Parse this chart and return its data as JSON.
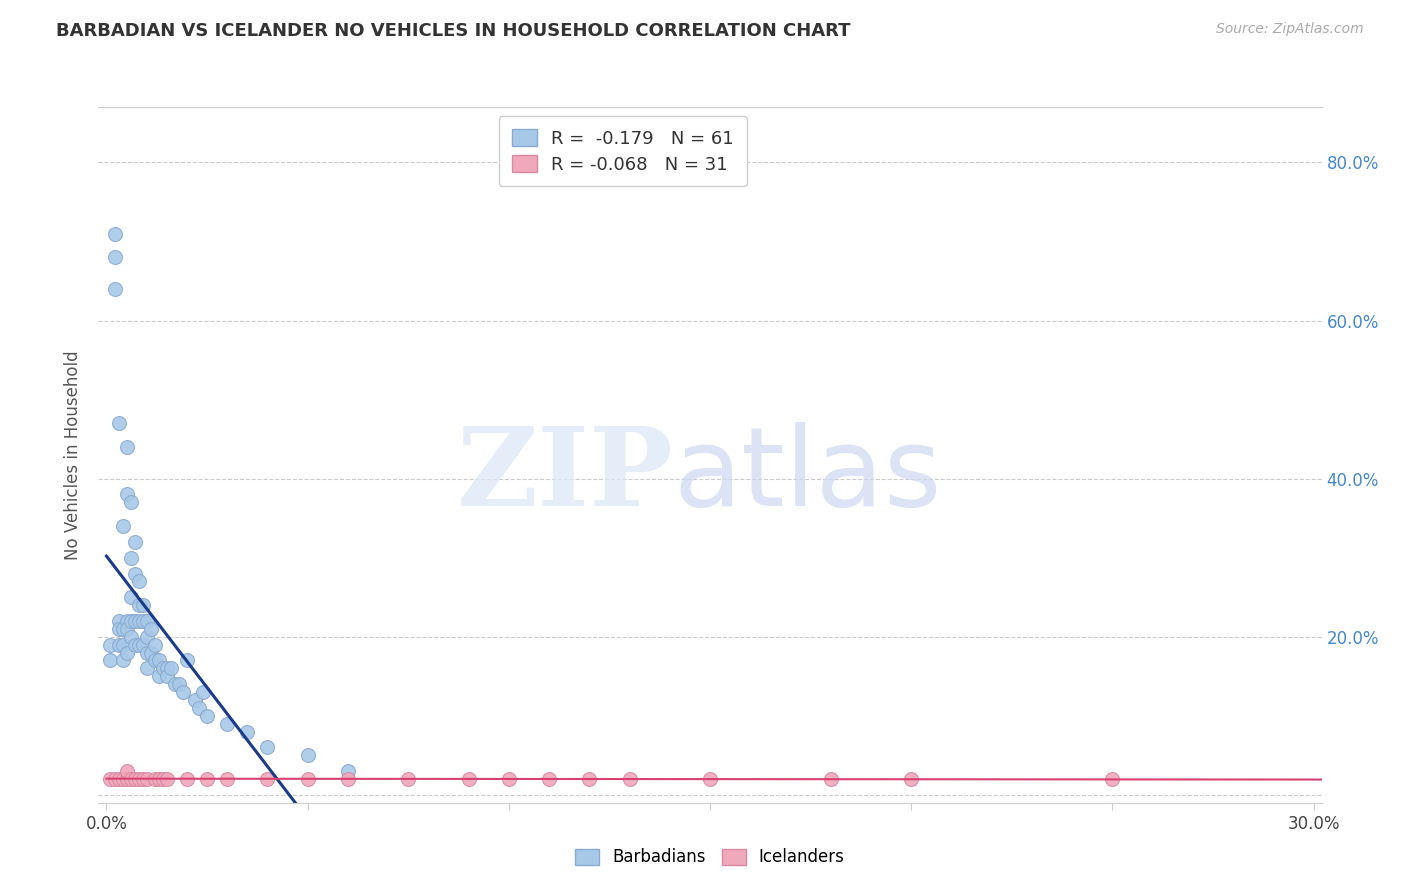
{
  "title": "BARBADIAN VS ICELANDER NO VEHICLES IN HOUSEHOLD CORRELATION CHART",
  "source": "Source: ZipAtlas.com",
  "ylabel": "No Vehicles in Household",
  "xlim": [
    -0.002,
    0.302
  ],
  "ylim": [
    -0.01,
    0.87
  ],
  "barbadian_R": -0.179,
  "barbadian_N": 61,
  "icelander_R": -0.068,
  "icelander_N": 31,
  "barbadian_color": "#a8c8e8",
  "barbadian_edge": "#88aad0",
  "icelander_color": "#f0a8bc",
  "icelander_edge": "#d888a0",
  "barbadian_line_color": "#1a3a8a",
  "icelander_line_color": "#d84070",
  "barbadian_x": [
    0.001,
    0.001,
    0.002,
    0.002,
    0.002,
    0.003,
    0.003,
    0.003,
    0.003,
    0.004,
    0.004,
    0.004,
    0.004,
    0.005,
    0.005,
    0.005,
    0.005,
    0.005,
    0.006,
    0.006,
    0.006,
    0.006,
    0.006,
    0.007,
    0.007,
    0.007,
    0.007,
    0.008,
    0.008,
    0.008,
    0.008,
    0.009,
    0.009,
    0.009,
    0.01,
    0.01,
    0.01,
    0.01,
    0.011,
    0.011,
    0.012,
    0.012,
    0.013,
    0.013,
    0.014,
    0.015,
    0.015,
    0.016,
    0.017,
    0.018,
    0.019,
    0.02,
    0.022,
    0.023,
    0.024,
    0.025,
    0.03,
    0.035,
    0.04,
    0.05,
    0.06
  ],
  "barbadian_y": [
    0.19,
    0.17,
    0.71,
    0.68,
    0.64,
    0.47,
    0.22,
    0.21,
    0.19,
    0.34,
    0.21,
    0.19,
    0.17,
    0.44,
    0.38,
    0.22,
    0.21,
    0.18,
    0.37,
    0.3,
    0.25,
    0.22,
    0.2,
    0.32,
    0.28,
    0.22,
    0.19,
    0.27,
    0.24,
    0.22,
    0.19,
    0.24,
    0.22,
    0.19,
    0.22,
    0.2,
    0.18,
    0.16,
    0.21,
    0.18,
    0.19,
    0.17,
    0.17,
    0.15,
    0.16,
    0.16,
    0.15,
    0.16,
    0.14,
    0.14,
    0.13,
    0.17,
    0.12,
    0.11,
    0.13,
    0.1,
    0.09,
    0.08,
    0.06,
    0.05,
    0.03
  ],
  "icelander_x": [
    0.001,
    0.002,
    0.003,
    0.004,
    0.005,
    0.005,
    0.006,
    0.007,
    0.008,
    0.009,
    0.01,
    0.012,
    0.013,
    0.014,
    0.015,
    0.02,
    0.025,
    0.03,
    0.04,
    0.05,
    0.06,
    0.075,
    0.09,
    0.1,
    0.11,
    0.12,
    0.13,
    0.15,
    0.18,
    0.2,
    0.25
  ],
  "icelander_y": [
    0.02,
    0.02,
    0.02,
    0.02,
    0.02,
    0.03,
    0.02,
    0.02,
    0.02,
    0.02,
    0.02,
    0.02,
    0.02,
    0.02,
    0.02,
    0.02,
    0.02,
    0.02,
    0.02,
    0.02,
    0.02,
    0.02,
    0.02,
    0.02,
    0.02,
    0.02,
    0.02,
    0.02,
    0.02,
    0.02,
    0.02
  ],
  "watermark_zip_color": "#ccd8ee",
  "watermark_atlas_color": "#b8c8e0",
  "background_color": "#ffffff",
  "grid_color": "#cccccc"
}
